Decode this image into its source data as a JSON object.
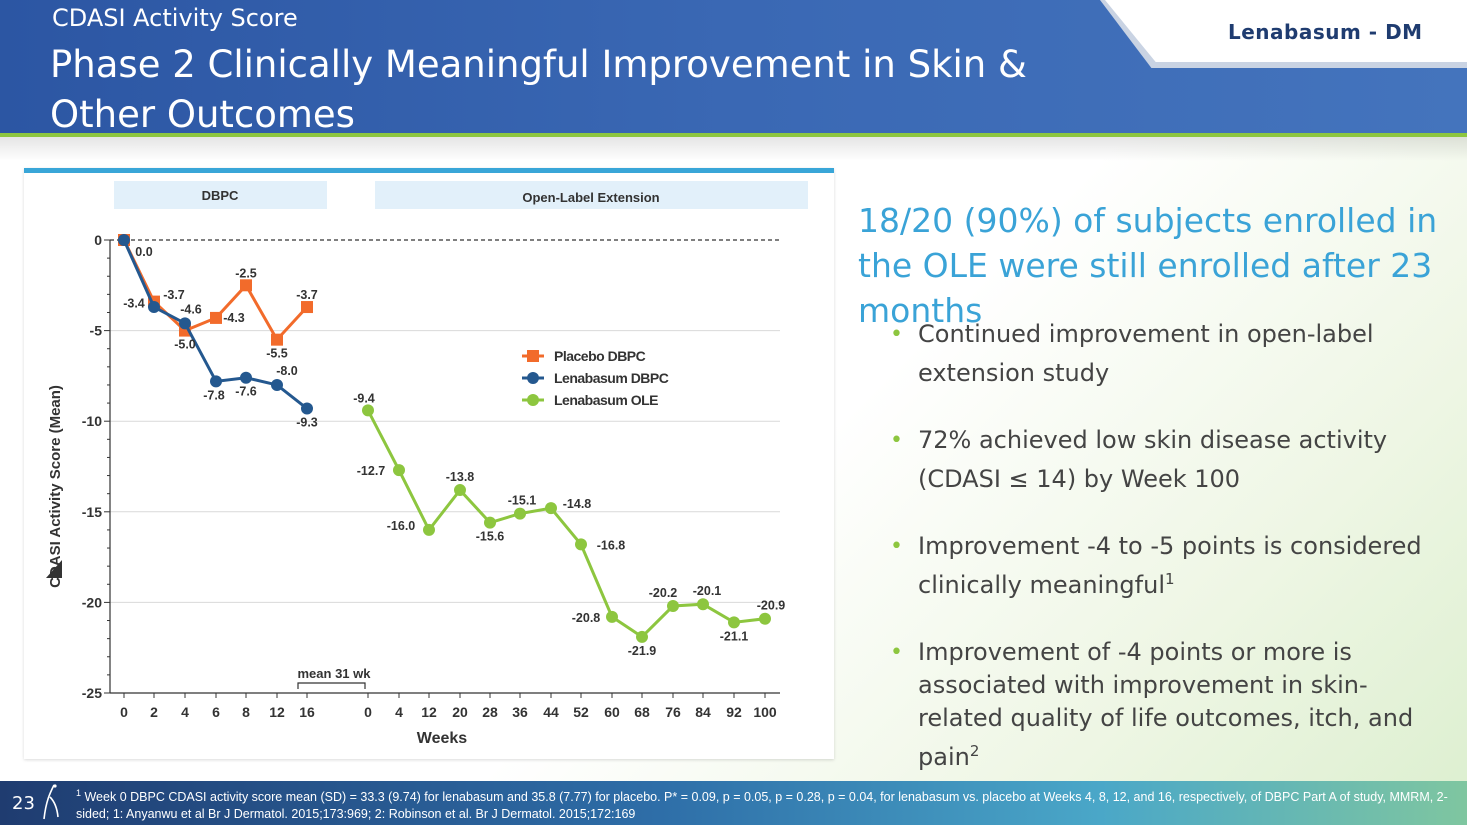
{
  "header": {
    "section_title": "CDASI Activity Score",
    "slide_title": "Phase 2 Clinically Meaningful Improvement in Skin & Other Outcomes",
    "brand": "Lenabasum - DM"
  },
  "colors": {
    "header_blue": "#2c56a3",
    "accent_green": "#8dc63f",
    "placebo": "#f26b2b",
    "lenabasum_dbpc": "#24588f",
    "lenabasum_ole": "#8dc63f",
    "headline_blue": "#3aa3d7",
    "brand_navy": "#1f3c70"
  },
  "chart_data": {
    "type": "line",
    "ylabel": "CDASI Activity Score (Mean)",
    "xlabel": "Weeks",
    "ylim": [
      -25,
      0
    ],
    "yticks": [
      0,
      -5,
      -10,
      -15,
      -20,
      -25
    ],
    "grid": true,
    "legend_position": "middle-right",
    "bands": [
      {
        "label": "DBPC"
      },
      {
        "label": "Open-Label Extension"
      }
    ],
    "dbpc_x_ticks": [
      "0",
      "2",
      "4",
      "6",
      "8",
      "12",
      "16"
    ],
    "ole_x_ticks": [
      "0",
      "4",
      "12",
      "20",
      "28",
      "36",
      "44",
      "52",
      "60",
      "68",
      "76",
      "84",
      "92",
      "100"
    ],
    "bracket_label": "mean 31 wk",
    "series": [
      {
        "name": "Placebo DBPC",
        "x": [
          0,
          2,
          4,
          6,
          8,
          12,
          16
        ],
        "values": [
          0,
          -3.4,
          -5.0,
          -4.3,
          -2.5,
          -5.5,
          -3.7
        ],
        "labels": [
          "",
          "-3.4",
          "-5.0",
          "-4.3",
          "-2.5",
          "-5.5",
          "-3.7"
        ]
      },
      {
        "name": "Lenabasum DBPC",
        "x": [
          0,
          2,
          4,
          6,
          8,
          12,
          16
        ],
        "values": [
          0,
          -3.7,
          -4.6,
          -7.8,
          -7.6,
          -8.0,
          -9.3
        ],
        "labels": [
          "0.0",
          "-3.7",
          "-4.6",
          "-7.8",
          "-7.6",
          "-8.0",
          "-9.3"
        ]
      },
      {
        "name": "Lenabasum OLE",
        "x": [
          0,
          4,
          12,
          20,
          28,
          36,
          44,
          52,
          60,
          68,
          76,
          84,
          92,
          100
        ],
        "values": [
          -9.4,
          -12.7,
          -16.0,
          -13.8,
          -15.6,
          -15.1,
          -14.8,
          -16.8,
          -20.8,
          -21.9,
          -20.2,
          -20.1,
          -21.1,
          -20.9
        ],
        "labels": [
          "-9.4",
          "-12.7",
          "-16.0",
          "-13.8",
          "-15.6",
          "-15.1",
          "-14.8",
          "-16.8",
          "-20.8",
          "-21.9",
          "-20.2",
          "-20.1",
          "-21.1",
          "-20.9"
        ]
      }
    ]
  },
  "right": {
    "headline": "18/20 (90%) of subjects enrolled in the OLE were still enrolled after 23 months",
    "bullets": [
      {
        "text": "Continued improvement in open-label extension study",
        "sup": ""
      },
      {
        "text": "72% achieved low skin disease activity (CDASI ≤ 14) by Week 100",
        "sup": ""
      },
      {
        "text": "Improvement -4 to -5 points is considered clinically meaningful",
        "sup": "1"
      },
      {
        "text": "Improvement of -4 points or more is associated with improvement in skin-related quality of life outcomes, itch, and pain",
        "sup": "2"
      }
    ]
  },
  "footer": {
    "page_number": "23",
    "footnote_sup": "1",
    "footnote": " Week 0 DBPC CDASI activity score mean (SD) = 33.3 (9.74) for lenabasum and 35.8 (7.77) for placebo. P* = 0.09, p = 0.05, p = 0.28, p = 0.04, for lenabasum vs. placebo at Weeks 4, 8, 12, and 16, respectively, of DBPC Part A of study, MMRM, 2-sided; 1: Anyanwu et al Br J Dermatol. 2015;173:969; 2: Robinson et al.  Br J Dermatol. 2015;172:169"
  }
}
